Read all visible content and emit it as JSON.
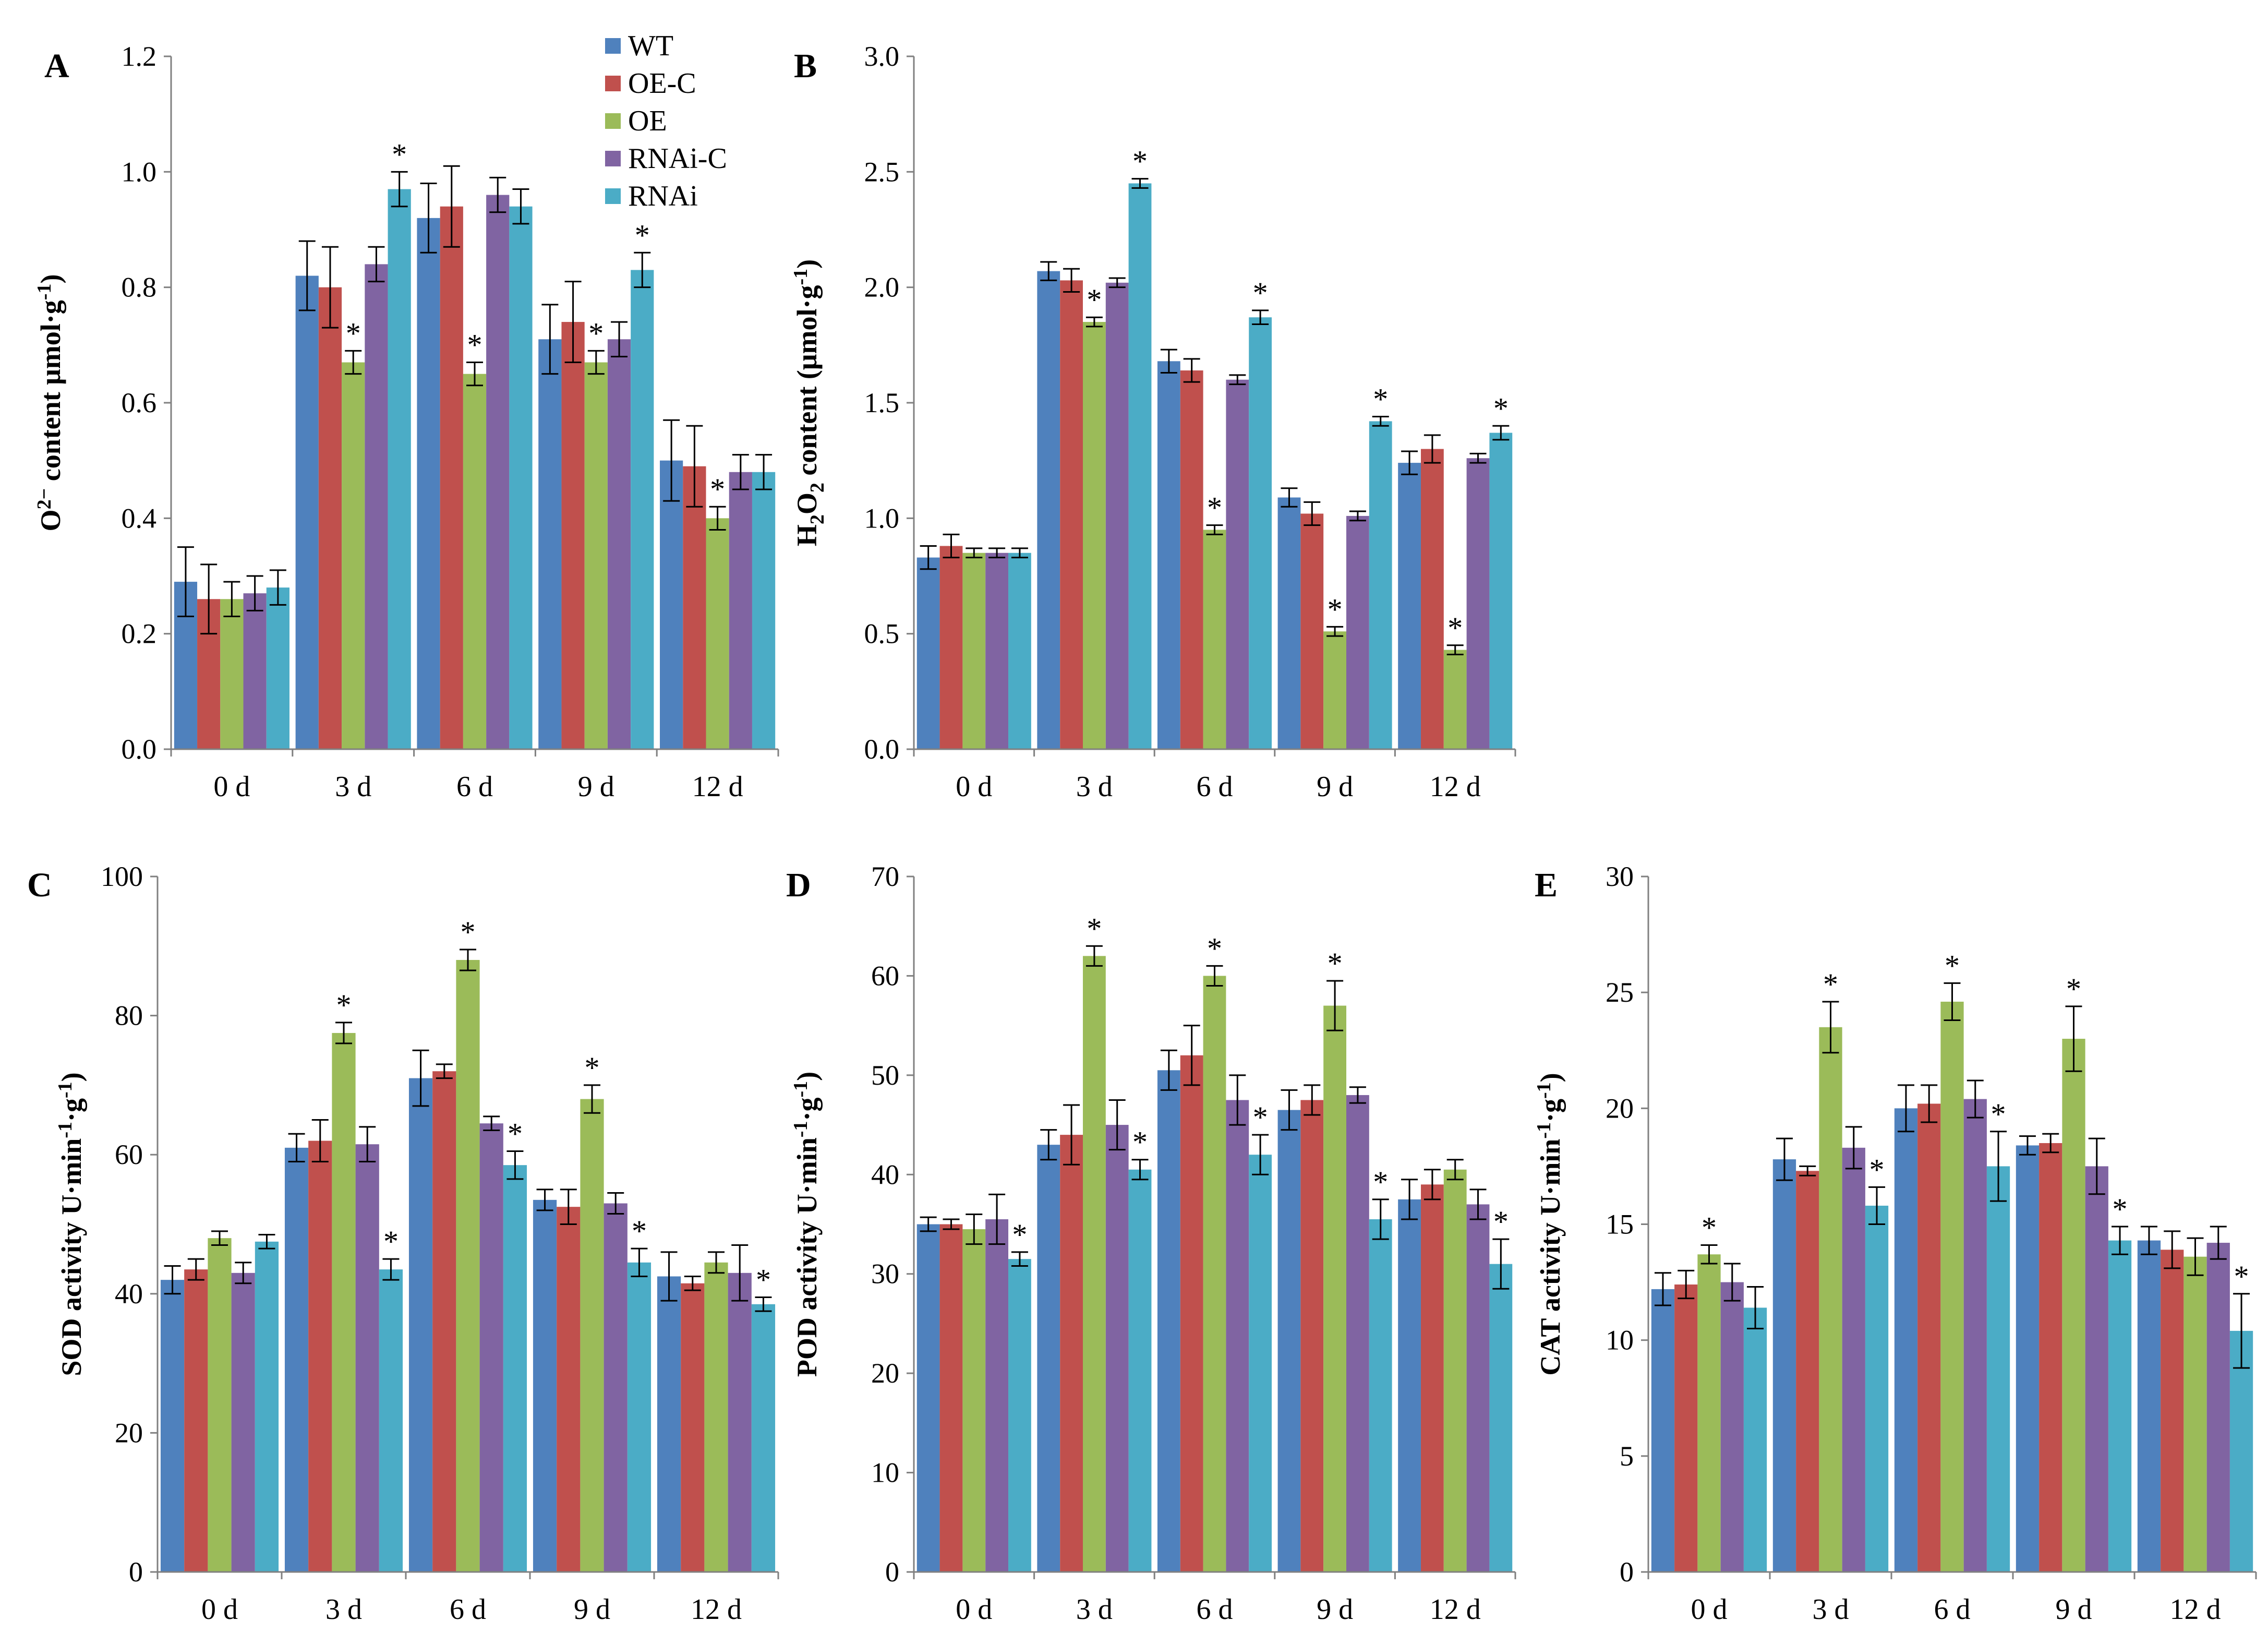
{
  "legend": {
    "series": [
      {
        "name": "WT",
        "color": "#4f81bd"
      },
      {
        "name": "OE-C",
        "color": "#c0504d"
      },
      {
        "name": "OE",
        "color": "#9bbb59"
      },
      {
        "name": "RNAi-C",
        "color": "#8064a2"
      },
      {
        "name": "RNAi",
        "color": "#4bacc6"
      }
    ]
  },
  "chart_data": [
    {
      "panel": "A",
      "type": "bar",
      "ylabel_main": "O",
      "ylabel_sup": "2−",
      "ylabel_rest": " content μmol·g",
      "ylabel_sup2": "-1",
      "ylabel_end": ")",
      "ylim": [
        0,
        1.2
      ],
      "yticks": [
        0.0,
        0.2,
        0.4,
        0.6,
        0.8,
        1.0,
        1.2
      ],
      "ytick_labels": [
        "0.0",
        "0.2",
        "0.4",
        "0.6",
        "0.8",
        "1.0",
        "1.2"
      ],
      "categories": [
        "0 d",
        "3 d",
        "6 d",
        "9 d",
        "12 d"
      ],
      "series": [
        {
          "name": "WT",
          "values": [
            0.29,
            0.82,
            0.92,
            0.71,
            0.5
          ],
          "errors": [
            0.06,
            0.06,
            0.06,
            0.06,
            0.07
          ],
          "sig": [
            false,
            false,
            false,
            false,
            false
          ]
        },
        {
          "name": "OE-C",
          "values": [
            0.26,
            0.8,
            0.94,
            0.74,
            0.49
          ],
          "errors": [
            0.06,
            0.07,
            0.07,
            0.07,
            0.07
          ],
          "sig": [
            false,
            false,
            false,
            false,
            false
          ]
        },
        {
          "name": "OE",
          "values": [
            0.26,
            0.67,
            0.65,
            0.67,
            0.4
          ],
          "errors": [
            0.03,
            0.02,
            0.02,
            0.02,
            0.02
          ],
          "sig": [
            false,
            true,
            true,
            true,
            true
          ]
        },
        {
          "name": "RNAi-C",
          "values": [
            0.27,
            0.84,
            0.96,
            0.71,
            0.48
          ],
          "errors": [
            0.03,
            0.03,
            0.03,
            0.03,
            0.03
          ],
          "sig": [
            false,
            false,
            false,
            false,
            false
          ]
        },
        {
          "name": "RNAi",
          "values": [
            0.28,
            0.97,
            0.94,
            0.83,
            0.48
          ],
          "errors": [
            0.03,
            0.03,
            0.03,
            0.03,
            0.03
          ],
          "sig": [
            false,
            true,
            false,
            true,
            false
          ]
        }
      ]
    },
    {
      "panel": "B",
      "type": "bar",
      "ylabel_main": "H",
      "ylabel_sub": "2",
      "ylabel_mid": "O",
      "ylabel_sub2": "2",
      "ylabel_rest": " content (μmol·g",
      "ylabel_sup2": "-1",
      "ylabel_end": ")",
      "ylim": [
        0,
        3.0
      ],
      "yticks": [
        0.0,
        0.5,
        1.0,
        1.5,
        2.0,
        2.5,
        3.0
      ],
      "ytick_labels": [
        "0.0",
        "0.5",
        "1.0",
        "1.5",
        "2.0",
        "2.5",
        "3.0"
      ],
      "categories": [
        "0 d",
        "3 d",
        "6 d",
        "9 d",
        "12 d"
      ],
      "series": [
        {
          "name": "WT",
          "values": [
            0.83,
            2.07,
            1.68,
            1.09,
            1.24
          ],
          "errors": [
            0.05,
            0.04,
            0.05,
            0.04,
            0.05
          ],
          "sig": [
            false,
            false,
            false,
            false,
            false
          ]
        },
        {
          "name": "OE-C",
          "values": [
            0.88,
            2.03,
            1.64,
            1.02,
            1.3
          ],
          "errors": [
            0.05,
            0.05,
            0.05,
            0.05,
            0.06
          ],
          "sig": [
            false,
            false,
            false,
            false,
            false
          ]
        },
        {
          "name": "OE",
          "values": [
            0.85,
            1.85,
            0.95,
            0.51,
            0.43
          ],
          "errors": [
            0.02,
            0.02,
            0.02,
            0.02,
            0.02
          ],
          "sig": [
            false,
            true,
            true,
            true,
            true
          ]
        },
        {
          "name": "RNAi-C",
          "values": [
            0.85,
            2.02,
            1.6,
            1.01,
            1.26
          ],
          "errors": [
            0.02,
            0.02,
            0.02,
            0.02,
            0.02
          ],
          "sig": [
            false,
            false,
            false,
            false,
            false
          ]
        },
        {
          "name": "RNAi",
          "values": [
            0.85,
            2.45,
            1.87,
            1.42,
            1.37
          ],
          "errors": [
            0.02,
            0.02,
            0.03,
            0.02,
            0.03
          ],
          "sig": [
            false,
            true,
            true,
            true,
            true
          ]
        }
      ]
    },
    {
      "panel": "C",
      "type": "bar",
      "ylabel_main": "SOD activity U·min",
      "ylabel_sup": "-1",
      "ylabel_rest": "·g",
      "ylabel_sup2": "-1",
      "ylabel_end": ")",
      "ylim": [
        0,
        100
      ],
      "yticks": [
        0,
        20,
        40,
        60,
        80,
        100
      ],
      "ytick_labels": [
        "0",
        "20",
        "40",
        "60",
        "80",
        "100"
      ],
      "categories": [
        "0 d",
        "3 d",
        "6 d",
        "9 d",
        "12 d"
      ],
      "series": [
        {
          "name": "WT",
          "values": [
            42,
            61,
            71,
            53.5,
            42.5
          ],
          "errors": [
            2,
            2,
            4,
            1.5,
            3.5
          ],
          "sig": [
            false,
            false,
            false,
            false,
            false
          ]
        },
        {
          "name": "OE-C",
          "values": [
            43.5,
            62,
            72,
            52.5,
            41.5
          ],
          "errors": [
            1.5,
            3,
            1,
            2.5,
            1
          ],
          "sig": [
            false,
            false,
            false,
            false,
            false
          ]
        },
        {
          "name": "OE",
          "values": [
            48,
            77.5,
            88,
            68,
            44.5
          ],
          "errors": [
            1,
            1.5,
            1.5,
            2,
            1.5
          ],
          "sig": [
            false,
            true,
            true,
            true,
            false
          ]
        },
        {
          "name": "RNAi-C",
          "values": [
            43,
            61.5,
            64.5,
            53,
            43
          ],
          "errors": [
            1.5,
            2.5,
            1,
            1.5,
            4
          ],
          "sig": [
            false,
            false,
            false,
            false,
            false
          ]
        },
        {
          "name": "RNAi",
          "values": [
            47.5,
            43.5,
            58.5,
            44.5,
            38.5
          ],
          "errors": [
            1,
            1.5,
            2,
            2,
            1
          ],
          "sig": [
            false,
            true,
            true,
            true,
            true
          ]
        }
      ]
    },
    {
      "panel": "D",
      "type": "bar",
      "ylabel_main": "POD activity U·min",
      "ylabel_sup": "-1",
      "ylabel_rest": "·g",
      "ylabel_sup2": "-1",
      "ylabel_end": ")",
      "ylim": [
        0,
        70
      ],
      "yticks": [
        0,
        10,
        20,
        30,
        40,
        50,
        60,
        70
      ],
      "ytick_labels": [
        "0",
        "10",
        "20",
        "30",
        "40",
        "50",
        "60",
        "70"
      ],
      "categories": [
        "0 d",
        "3 d",
        "6 d",
        "9 d",
        "12 d"
      ],
      "series": [
        {
          "name": "WT",
          "values": [
            35,
            43,
            50.5,
            46.5,
            37.5
          ],
          "errors": [
            0.7,
            1.5,
            2,
            2,
            2
          ],
          "sig": [
            false,
            false,
            false,
            false,
            false
          ]
        },
        {
          "name": "OE-C",
          "values": [
            35,
            44,
            52,
            47.5,
            39
          ],
          "errors": [
            0.5,
            3,
            3,
            1.5,
            1.5
          ],
          "sig": [
            false,
            false,
            false,
            false,
            false
          ]
        },
        {
          "name": "OE",
          "values": [
            34.5,
            62,
            60,
            57,
            40.5
          ],
          "errors": [
            1.5,
            1,
            1,
            2.5,
            1
          ],
          "sig": [
            false,
            true,
            true,
            true,
            false
          ]
        },
        {
          "name": "RNAi-C",
          "values": [
            35.5,
            45,
            47.5,
            48,
            37
          ],
          "errors": [
            2.5,
            2.5,
            2.5,
            0.8,
            1.5
          ],
          "sig": [
            false,
            false,
            false,
            false,
            false
          ]
        },
        {
          "name": "RNAi",
          "values": [
            31.5,
            40.5,
            42,
            35.5,
            31
          ],
          "errors": [
            0.7,
            1,
            2,
            2,
            2.5
          ],
          "sig": [
            true,
            true,
            true,
            true,
            true
          ]
        }
      ]
    },
    {
      "panel": "E",
      "type": "bar",
      "ylabel_main": "CAT activity U·min",
      "ylabel_sup": "-1",
      "ylabel_rest": "·g",
      "ylabel_sup2": "-1",
      "ylabel_end": ")",
      "ylim": [
        0,
        30
      ],
      "yticks": [
        0,
        5,
        10,
        15,
        20,
        25,
        30
      ],
      "ytick_labels": [
        "0",
        "5",
        "10",
        "15",
        "20",
        "25",
        "30"
      ],
      "categories": [
        "0 d",
        "3 d",
        "6 d",
        "9 d",
        "12 d"
      ],
      "series": [
        {
          "name": "WT",
          "values": [
            12.2,
            17.8,
            20,
            18.4,
            14.3
          ],
          "errors": [
            0.7,
            0.9,
            1,
            0.4,
            0.6
          ],
          "sig": [
            false,
            false,
            false,
            false,
            false
          ]
        },
        {
          "name": "OE-C",
          "values": [
            12.4,
            17.3,
            20.2,
            18.5,
            13.9
          ],
          "errors": [
            0.6,
            0.2,
            0.8,
            0.4,
            0.8
          ],
          "sig": [
            false,
            false,
            false,
            false,
            false
          ]
        },
        {
          "name": "OE",
          "values": [
            13.7,
            23.5,
            24.6,
            23,
            13.6
          ],
          "errors": [
            0.4,
            1.1,
            0.8,
            1.4,
            0.8
          ],
          "sig": [
            true,
            true,
            true,
            true,
            false
          ]
        },
        {
          "name": "RNAi-C",
          "values": [
            12.5,
            18.3,
            20.4,
            17.5,
            14.2
          ],
          "errors": [
            0.8,
            0.9,
            0.8,
            1.2,
            0.7
          ],
          "sig": [
            false,
            false,
            false,
            false,
            false
          ]
        },
        {
          "name": "RNAi",
          "values": [
            11.4,
            15.8,
            17.5,
            14.3,
            10.4
          ],
          "errors": [
            0.9,
            0.8,
            1.5,
            0.6,
            1.6
          ],
          "sig": [
            false,
            true,
            true,
            true,
            true
          ]
        }
      ]
    }
  ],
  "sig_marker": "*"
}
